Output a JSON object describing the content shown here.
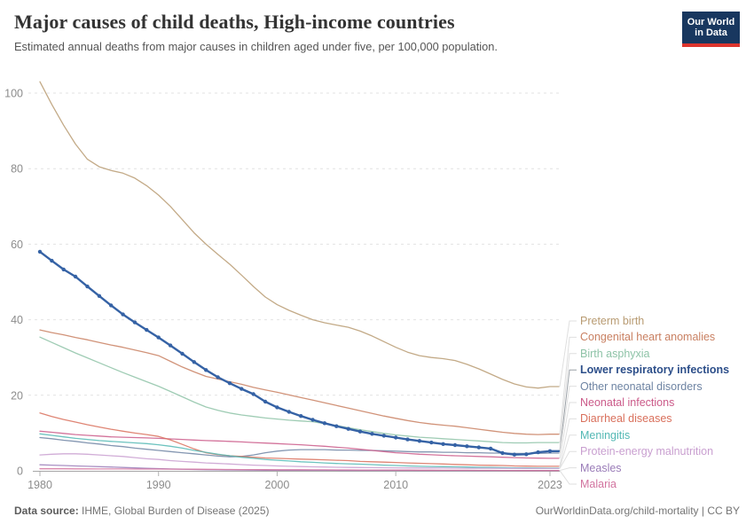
{
  "header": {
    "title": "Major causes of child deaths, High-income countries",
    "subtitle": "Estimated annual deaths from major causes in children aged under five, per 100,000 population."
  },
  "logo": {
    "line1": "Our World",
    "line2": "in Data"
  },
  "footer": {
    "source_label": "Data source:",
    "source_value": "IHME, Global Burden of Disease (2025)",
    "link": "OurWorldinData.org/child-mortality | CC BY"
  },
  "chart_data": {
    "type": "line",
    "title": "Major causes of child deaths, High-income countries",
    "xlabel": "",
    "ylabel": "Estimated annual deaths per 100,000 population",
    "grid": true,
    "legend_position": "right",
    "ylim": [
      0,
      103
    ],
    "yticks": [
      0,
      20,
      40,
      60,
      80,
      100
    ],
    "xticks": [
      1980,
      1990,
      2000,
      2010,
      2023
    ],
    "x": [
      1980,
      1981,
      1982,
      1983,
      1984,
      1985,
      1986,
      1987,
      1988,
      1989,
      1990,
      1991,
      1992,
      1993,
      1994,
      1995,
      1996,
      1997,
      1998,
      1999,
      2000,
      2001,
      2002,
      2003,
      2004,
      2005,
      2006,
      2007,
      2008,
      2009,
      2010,
      2011,
      2012,
      2013,
      2014,
      2015,
      2016,
      2017,
      2018,
      2019,
      2020,
      2021,
      2022,
      2023
    ],
    "series": [
      {
        "name": "Preterm birth",
        "color": "#b89b72",
        "emphasis": false,
        "values": [
          103,
          97,
          91.5,
          86.5,
          82.5,
          80.5,
          79.5,
          78.8,
          77.5,
          75.5,
          73,
          70,
          66.5,
          63,
          60,
          57.3,
          54.7,
          51.8,
          48.8,
          46,
          44,
          42.5,
          41.2,
          40,
          39.2,
          38.6,
          38,
          37,
          35.7,
          34.2,
          32.7,
          31.4,
          30.5,
          30,
          29.7,
          29.2,
          28.2,
          27,
          25.6,
          24.2,
          23,
          22.2,
          21.9,
          22.3
        ]
      },
      {
        "name": "Congenital heart anomalies",
        "color": "#c98062",
        "emphasis": false,
        "values": [
          37.3,
          36.6,
          36,
          35.3,
          34.7,
          34,
          33.3,
          32.7,
          32,
          31.3,
          30.5,
          29,
          27.5,
          26.2,
          25,
          24.3,
          23.6,
          22.9,
          22.1,
          21.4,
          20.8,
          20.1,
          19.4,
          18.7,
          18,
          17.3,
          16.6,
          15.9,
          15.2,
          14.5,
          13.9,
          13.3,
          12.8,
          12.4,
          12.1,
          11.8,
          11.4,
          11,
          10.6,
          10.2,
          9.9,
          9.7,
          9.6,
          9.7
        ]
      },
      {
        "name": "Birth asphyxia",
        "color": "#8ec3a7",
        "emphasis": false,
        "values": [
          35.4,
          34,
          32.6,
          31.2,
          29.9,
          28.6,
          27.3,
          26,
          24.8,
          23.6,
          22.4,
          21,
          19.6,
          18.2,
          16.9,
          16,
          15.3,
          14.8,
          14.4,
          14,
          13.7,
          13.4,
          13.2,
          13,
          12.5,
          12,
          11.4,
          10.9,
          10.4,
          9.9,
          9.5,
          9.2,
          8.9,
          8.7,
          8.5,
          8.3,
          8.1,
          7.9,
          7.7,
          7.5,
          7.4,
          7.4,
          7.5,
          7.5
        ]
      },
      {
        "name": "Lower respiratory infections",
        "color": "#3562a5",
        "emphasis": true,
        "values": [
          58,
          55.6,
          53.3,
          51.4,
          48.8,
          46.3,
          43.8,
          41.4,
          39.3,
          37.3,
          35.3,
          33.2,
          31,
          28.8,
          26.7,
          24.8,
          23.2,
          21.7,
          20.3,
          18.3,
          16.8,
          15.6,
          14.5,
          13.5,
          12.6,
          11.8,
          11.1,
          10.4,
          9.8,
          9.3,
          8.8,
          8.3,
          7.9,
          7.5,
          7.1,
          6.8,
          6.5,
          6.2,
          5.9,
          4.7,
          4.3,
          4.4,
          4.9,
          5.2
        ]
      },
      {
        "name": "Other neonatal disorders",
        "color": "#6e84a3",
        "emphasis": false,
        "values": [
          8.8,
          8.5,
          8.1,
          7.8,
          7.4,
          7.1,
          6.7,
          6.4,
          6,
          5.7,
          5.4,
          5.1,
          4.8,
          4.5,
          4.2,
          3.9,
          3.7,
          3.8,
          4.2,
          4.8,
          5.2,
          5.5,
          5.6,
          5.6,
          5.6,
          5.5,
          5.5,
          5.4,
          5.4,
          5.3,
          5.2,
          5.1,
          5,
          5,
          4.9,
          4.9,
          4.8,
          4.8,
          4.7,
          4.7,
          4.6,
          4.6,
          4.6,
          4.7
        ]
      },
      {
        "name": "Neonatal infections",
        "color": "#cb5a89",
        "emphasis": false,
        "values": [
          10.5,
          10.2,
          9.9,
          9.6,
          9.4,
          9.2,
          9,
          8.9,
          8.8,
          8.7,
          8.6,
          8.45,
          8.3,
          8.15,
          8,
          7.9,
          7.8,
          7.65,
          7.5,
          7.35,
          7.2,
          7.05,
          6.9,
          6.7,
          6.5,
          6.25,
          6,
          5.7,
          5.4,
          5.1,
          4.8,
          4.6,
          4.4,
          4.25,
          4.1,
          4,
          3.9,
          3.8,
          3.7,
          3.6,
          3.5,
          3.4,
          3.35,
          3.3
        ]
      },
      {
        "name": "Diarrheal diseases",
        "color": "#d9705c",
        "emphasis": false,
        "values": [
          15.3,
          14.4,
          13.6,
          12.9,
          12.2,
          11.6,
          11,
          10.5,
          10,
          9.6,
          9.1,
          8.2,
          7,
          5.8,
          4.8,
          4.3,
          4,
          3.8,
          3.6,
          3.4,
          3.3,
          3.2,
          3.1,
          3,
          2.9,
          2.8,
          2.7,
          2.5,
          2.4,
          2.3,
          2.2,
          2.1,
          2,
          1.9,
          1.8,
          1.7,
          1.6,
          1.5,
          1.45,
          1.4,
          1.3,
          1.25,
          1.2,
          1.2
        ]
      },
      {
        "name": "Meningitis",
        "color": "#53b8b4",
        "emphasis": false,
        "values": [
          9.8,
          9.4,
          9,
          8.6,
          8.3,
          8,
          7.8,
          7.6,
          7.4,
          7.2,
          6.9,
          6.5,
          6,
          5.4,
          4.9,
          4.4,
          4,
          3.6,
          3.3,
          3,
          2.8,
          2.6,
          2.4,
          2.25,
          2.1,
          1.95,
          1.85,
          1.75,
          1.65,
          1.5,
          1.4,
          1.3,
          1.2,
          1.15,
          1.1,
          1.05,
          1,
          0.95,
          0.9,
          0.85,
          0.8,
          0.75,
          0.72,
          0.7
        ]
      },
      {
        "name": "Protein-energy malnutrition",
        "color": "#c99fd0",
        "emphasis": false,
        "values": [
          4.2,
          4.4,
          4.5,
          4.5,
          4.4,
          4.2,
          4,
          3.8,
          3.5,
          3.2,
          3,
          2.7,
          2.5,
          2.3,
          2.1,
          1.95,
          1.8,
          1.65,
          1.5,
          1.4,
          1.3,
          1.2,
          1.12,
          1.05,
          1,
          0.95,
          0.9,
          0.87,
          0.84,
          0.82,
          0.8,
          0.78,
          0.76,
          0.74,
          0.72,
          0.7,
          0.69,
          0.68,
          0.67,
          0.66,
          0.65,
          0.63,
          0.62,
          0.6
        ]
      },
      {
        "name": "Measles",
        "color": "#9a7cb8",
        "emphasis": false,
        "values": [
          1.6,
          1.5,
          1.4,
          1.3,
          1.2,
          1.1,
          1,
          0.9,
          0.78,
          0.68,
          0.58,
          0.5,
          0.42,
          0.36,
          0.3,
          0.26,
          0.23,
          0.2,
          0.18,
          0.17,
          0.16,
          0.15,
          0.14,
          0.14,
          0.13,
          0.13,
          0.12,
          0.12,
          0.12,
          0.11,
          0.11,
          0.11,
          0.1,
          0.1,
          0.1,
          0.1,
          0.1,
          0.1,
          0.1,
          0.1,
          0.1,
          0.1,
          0.1,
          0.1
        ]
      },
      {
        "name": "Malaria",
        "color": "#d2739f",
        "emphasis": false,
        "values": [
          0.55,
          0.54,
          0.53,
          0.52,
          0.51,
          0.5,
          0.5,
          0.49,
          0.48,
          0.47,
          0.46,
          0.45,
          0.44,
          0.42,
          0.4,
          0.38,
          0.36,
          0.34,
          0.32,
          0.3,
          0.29,
          0.28,
          0.27,
          0.26,
          0.25,
          0.24,
          0.23,
          0.22,
          0.21,
          0.2,
          0.19,
          0.18,
          0.17,
          0.16,
          0.15,
          0.14,
          0.13,
          0.12,
          0.11,
          0.1,
          0.09,
          0.08,
          0.08,
          0.07
        ]
      }
    ]
  }
}
